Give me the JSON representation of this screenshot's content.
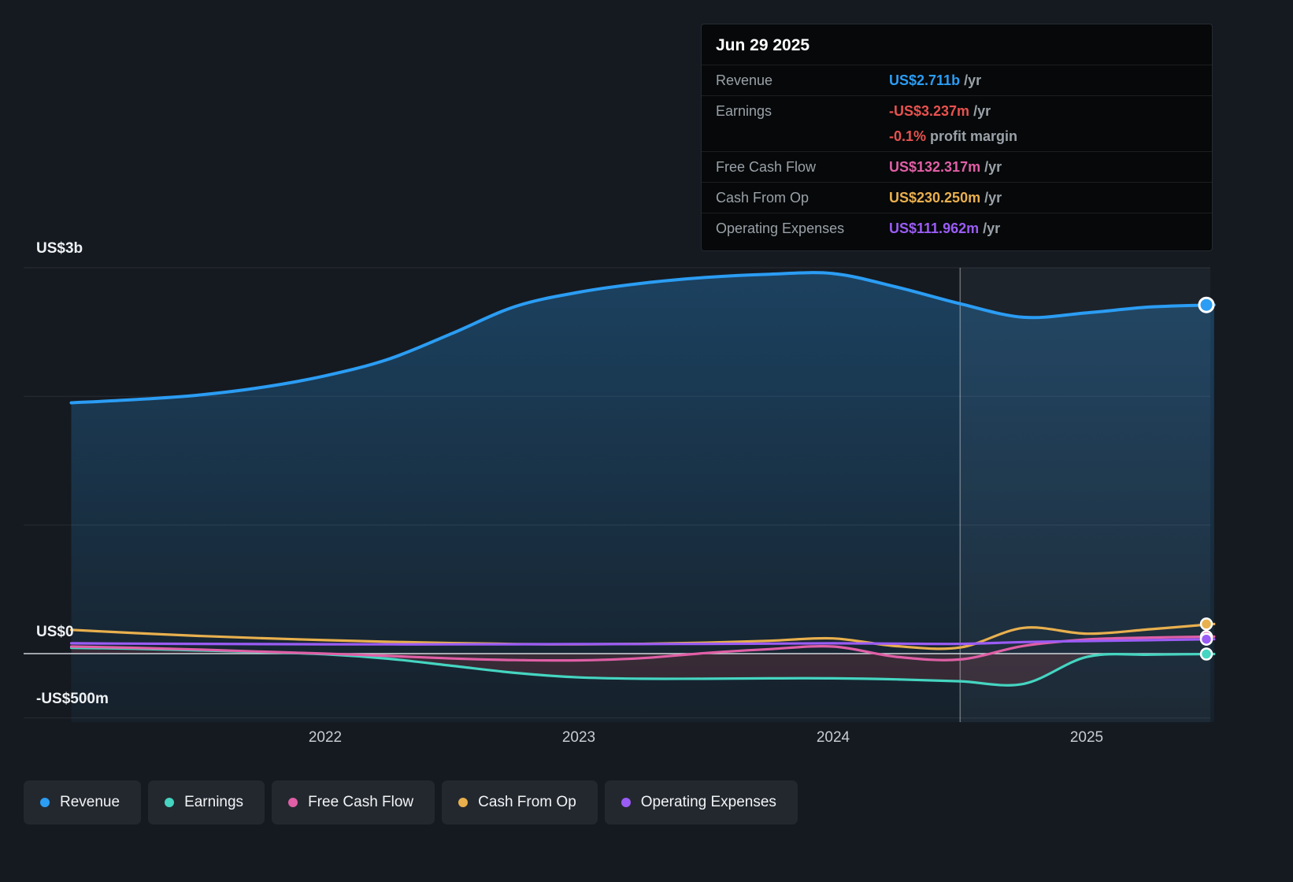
{
  "tooltip": {
    "date": "Jun 29 2025",
    "rows": [
      {
        "label": "Revenue",
        "value": "US$2.711b",
        "suffix": " /yr",
        "color": "#2b9df4"
      },
      {
        "label": "Earnings",
        "value": "-US$3.237m",
        "suffix": " /yr",
        "color": "#e8524f"
      },
      {
        "label": "",
        "value": "-0.1%",
        "suffix": " profit margin",
        "color": "#e8524f"
      },
      {
        "label": "Free Cash Flow",
        "value": "US$132.317m",
        "suffix": " /yr",
        "color": "#e05fa6"
      },
      {
        "label": "Cash From Op",
        "value": "US$230.250m",
        "suffix": " /yr",
        "color": "#e9b04e"
      },
      {
        "label": "Operating Expenses",
        "value": "US$111.962m",
        "suffix": " /yr",
        "color": "#9a5cf5"
      }
    ]
  },
  "axis": {
    "y_labels": [
      "US$3b",
      "US$0",
      "-US$500m"
    ],
    "x_labels": [
      "2022",
      "2023",
      "2024",
      "2025"
    ]
  },
  "legend": [
    {
      "label": "Revenue",
      "color": "#2b9df4"
    },
    {
      "label": "Earnings",
      "color": "#45d5c1"
    },
    {
      "label": "Free Cash Flow",
      "color": "#e05fa6"
    },
    {
      "label": "Cash From Op",
      "color": "#e9b04e"
    },
    {
      "label": "Operating Expenses",
      "color": "#9a5cf5"
    }
  ],
  "chart_data": {
    "type": "line",
    "value_unit": "US$ millions",
    "x_unit": "calendar year (fractional quarters)",
    "x": [
      2021,
      2021.25,
      2021.5,
      2021.75,
      2022,
      2022.25,
      2022.5,
      2022.75,
      2023,
      2023.25,
      2023.5,
      2023.75,
      2024,
      2024.25,
      2024.5,
      2024.75,
      2025,
      2025.25,
      2025.5
    ],
    "series": [
      {
        "name": "Revenue",
        "color": "#2b9df4",
        "values": [
          1950,
          1975,
          2010,
          2070,
          2160,
          2290,
          2490,
          2700,
          2810,
          2880,
          2925,
          2950,
          2955,
          2850,
          2720,
          2615,
          2650,
          2695,
          2711
        ]
      },
      {
        "name": "Earnings",
        "color": "#45d5c1",
        "values": [
          45,
          38,
          25,
          12,
          -5,
          -40,
          -95,
          -150,
          -185,
          -195,
          -195,
          -192,
          -192,
          -200,
          -215,
          -235,
          -25,
          -8,
          -3.237
        ]
      },
      {
        "name": "Free Cash Flow",
        "color": "#e05fa6",
        "values": [
          55,
          45,
          32,
          15,
          0,
          -18,
          -38,
          -50,
          -52,
          -35,
          5,
          35,
          55,
          -25,
          -45,
          60,
          110,
          125,
          132.317
        ]
      },
      {
        "name": "Cash From Op",
        "color": "#e9b04e",
        "values": [
          185,
          160,
          138,
          120,
          105,
          92,
          82,
          75,
          72,
          76,
          85,
          100,
          118,
          58,
          48,
          200,
          155,
          190,
          230.25
        ]
      },
      {
        "name": "Operating Expenses",
        "color": "#9a5cf5",
        "values": [
          80,
          78,
          76,
          74,
          73,
          72,
          72,
          73,
          74,
          75,
          76,
          78,
          80,
          78,
          76,
          90,
          98,
          105,
          111.962
        ]
      }
    ],
    "ylim": [
      -500,
      3000
    ],
    "y_gridlines": [
      3000,
      2000,
      1000,
      -500
    ],
    "y_tick_labels": [
      {
        "value": 3000,
        "label": "US$3b"
      },
      {
        "value": 0,
        "label": "US$0"
      },
      {
        "value": -500,
        "label": "-US$500m"
      }
    ],
    "x_ticks": [
      2022,
      2023,
      2024,
      2025
    ],
    "divider_x": 2024.5,
    "highlight_region": [
      2024.5,
      2025.5
    ],
    "grid": "horizontal only",
    "legend_position": "bottom-left"
  }
}
